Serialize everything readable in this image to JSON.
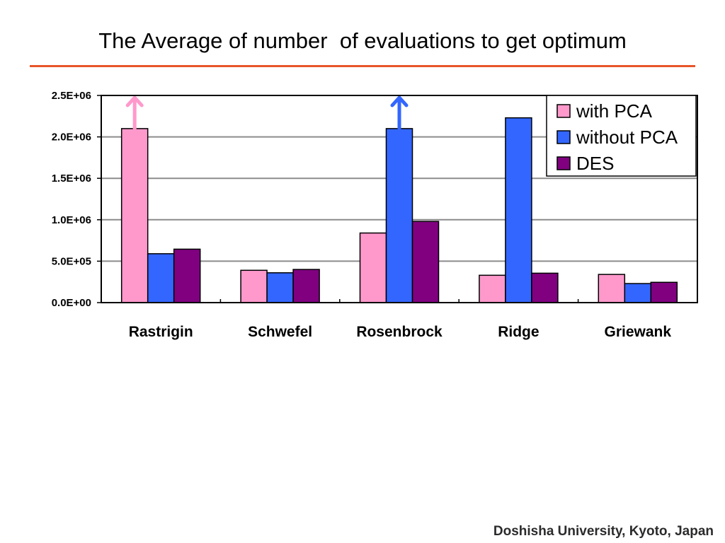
{
  "slide": {
    "title": "The Average of number  of evaluations to get optimum",
    "rule_color": "#e8552a",
    "footer": "Doshisha University, Kyoto, Japan"
  },
  "chart_data": {
    "type": "bar",
    "title": "",
    "xlabel": "",
    "ylabel": "",
    "ylim": [
      0,
      2500000
    ],
    "yticks": [
      0,
      500000,
      1000000,
      1500000,
      2000000,
      2500000
    ],
    "ytick_labels": [
      "0.0E+00",
      "5.0E+05",
      "1.0E+06",
      "1.5E+06",
      "2.0E+06",
      "2.5E+06"
    ],
    "grid": true,
    "legend_position": "top-right",
    "categories": [
      "Rastrigin",
      "Schwefel",
      "Rosenbrock",
      "Ridge",
      "Griewank"
    ],
    "series": [
      {
        "name": "with PCA",
        "color": "#ff99cc",
        "values": [
          2100000,
          390000,
          840000,
          330000,
          340000
        ]
      },
      {
        "name": "without PCA",
        "color": "#3366ff",
        "values": [
          590000,
          360000,
          2100000,
          2230000,
          230000
        ]
      },
      {
        "name": "DES",
        "color": "#800080",
        "values": [
          645000,
          400000,
          980000,
          355000,
          245000
        ]
      }
    ],
    "annotations": [
      {
        "type": "up-arrow",
        "category": "Rastrigin",
        "series": "with PCA",
        "color": "#ff99cc"
      },
      {
        "type": "up-arrow",
        "category": "Rosenbrock",
        "series": "without PCA",
        "color": "#3366ff"
      }
    ]
  }
}
